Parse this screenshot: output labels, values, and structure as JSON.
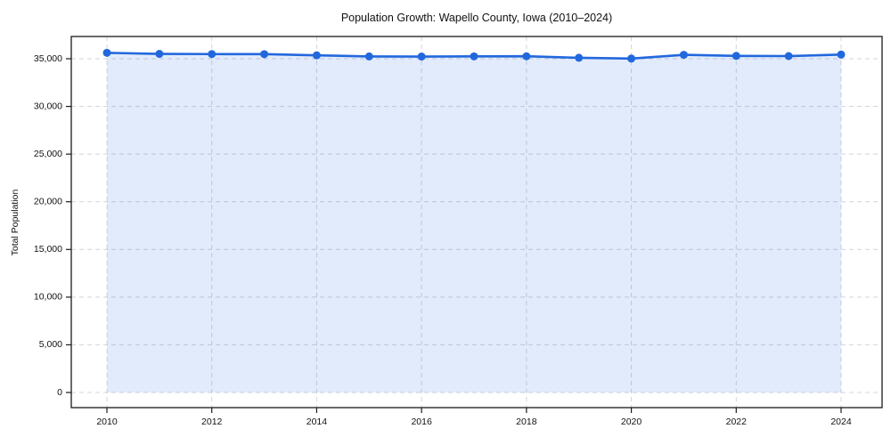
{
  "chart_data": {
    "type": "area",
    "title": "Population Growth: Wapello County, Iowa (2010–2024)",
    "xlabel": "",
    "ylabel": "Total Population",
    "x": [
      2010,
      2011,
      2012,
      2013,
      2014,
      2015,
      2016,
      2017,
      2018,
      2019,
      2020,
      2021,
      2022,
      2023,
      2024
    ],
    "values": [
      35620,
      35510,
      35490,
      35480,
      35360,
      35240,
      35230,
      35250,
      35260,
      35100,
      35020,
      35410,
      35300,
      35280,
      35440
    ],
    "series_name": "Total Population",
    "x_tick_values": [
      2010,
      2012,
      2014,
      2016,
      2018,
      2020,
      2022,
      2024
    ],
    "x_tick_labels": [
      "2010",
      "2012",
      "2014",
      "2016",
      "2018",
      "2020",
      "2022",
      "2024"
    ],
    "y_tick_values": [
      0,
      5000,
      10000,
      15000,
      20000,
      25000,
      30000,
      35000
    ],
    "y_tick_labels": [
      "0",
      "5,000",
      "10,000",
      "15,000",
      "20,000",
      "25,000",
      "30,000",
      "35,000"
    ],
    "ylim": [
      0,
      37400
    ],
    "xlim": [
      2009.3,
      2024.8
    ],
    "grid": "dashed",
    "legend": "none",
    "markers": true,
    "colors": {
      "line": "#2268dd",
      "marker": "#2268dd",
      "fill": "#2268dd",
      "fill_opacity": 0.13,
      "grid": "#d0d4db",
      "spine": "#1a1a1a",
      "text": "#111111",
      "background": "#ffffff"
    }
  }
}
